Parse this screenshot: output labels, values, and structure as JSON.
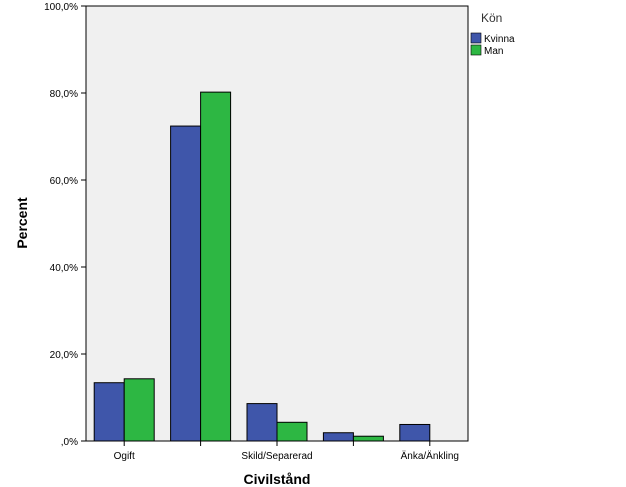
{
  "chart_data": {
    "type": "bar",
    "categories": [
      "Ogift",
      "",
      "Skild/Separerad",
      "",
      "Änka/Änkling"
    ],
    "series": [
      {
        "name": "Kvinna",
        "color": "#3f56aa",
        "values": [
          13.4,
          72.4,
          8.6,
          1.9,
          3.8
        ]
      },
      {
        "name": "Man",
        "color": "#2db743",
        "values": [
          14.3,
          80.2,
          4.3,
          1.1,
          0
        ]
      }
    ],
    "xlabel": "Civilstånd",
    "ylabel": "Percent",
    "ylim": [
      0,
      100
    ],
    "yticks": [
      0,
      20,
      40,
      60,
      80,
      100
    ],
    "ytick_labels": [
      ",0%",
      "20,0%",
      "40,0%",
      "60,0%",
      "80,0%",
      "100,0%"
    ],
    "legend_title": "Kön",
    "legend_position": "top-right outside plot",
    "plot_background": "#f0f0f0",
    "grid": false
  }
}
